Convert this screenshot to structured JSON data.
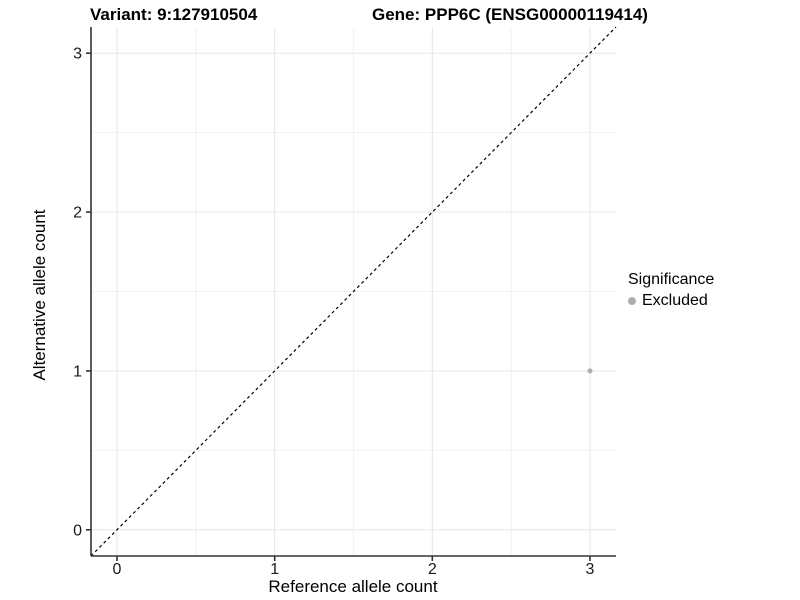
{
  "chart_data": {
    "type": "scatter",
    "title_left": "Variant: 9:127910504",
    "title_right": "Gene: PPP6C (ENSG00000119414)",
    "xlabel": "Reference allele count",
    "ylabel": "Alternative allele count",
    "xlim": [
      -0.165,
      3.165
    ],
    "ylim": [
      -0.165,
      3.165
    ],
    "x_ticks": [
      0,
      1,
      2,
      3
    ],
    "y_ticks": [
      0,
      1,
      2,
      3
    ],
    "minor_gridlines": [
      0.5,
      1.5,
      2.5
    ],
    "grid": "on",
    "identity_line": {
      "equation": "y = x",
      "style": "dashed",
      "color": "#000000",
      "from": [
        -0.165,
        -0.165
      ],
      "to": [
        3.165,
        3.165
      ]
    },
    "series": [
      {
        "name": "Excluded",
        "color": "#aeaeae",
        "marker": "circle",
        "points": [
          [
            3,
            1
          ]
        ]
      }
    ],
    "legend": {
      "title": "Significance",
      "position": "right",
      "items": [
        {
          "label": "Excluded",
          "color": "#aeaeae",
          "marker": "circle"
        }
      ]
    }
  },
  "colors": {
    "background": "#ffffff",
    "grid_major": "#e6e6e6",
    "grid_minor": "#f2f2f2",
    "axis": "#333333",
    "tick_text": "#1a1a1a",
    "title_text": "#000000",
    "point": "#aeaeae"
  }
}
